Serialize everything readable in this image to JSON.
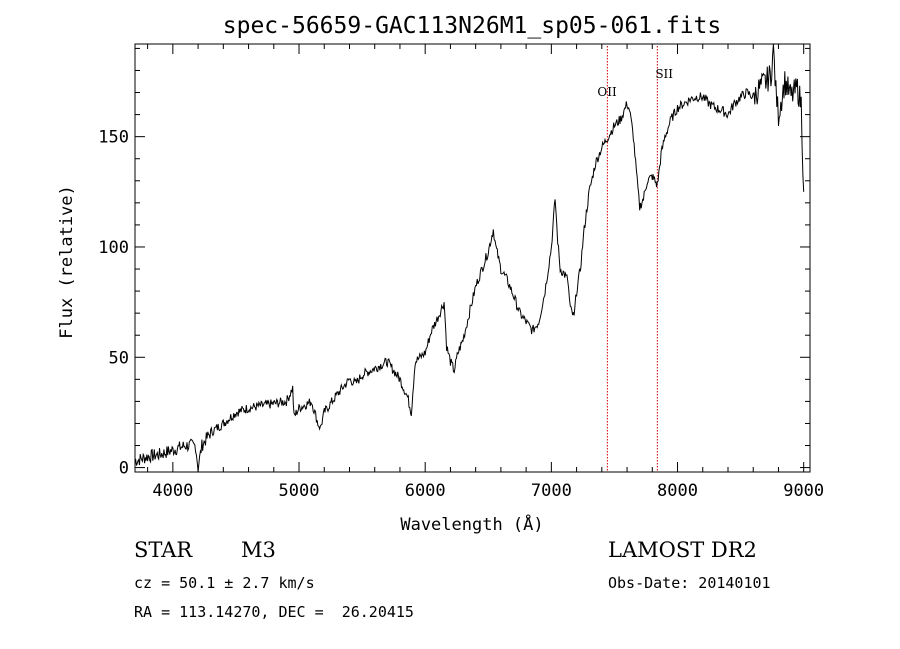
{
  "chart_data": {
    "type": "line",
    "title": "spec-56659-GAC113N26M1_sp05-061.fits",
    "xlabel": "Wavelength (Å)",
    "ylabel": "Flux (relative)",
    "xlim": [
      3700,
      9050
    ],
    "ylim": [
      -2,
      192
    ],
    "xticks": [
      4000,
      5000,
      6000,
      7000,
      8000,
      9000
    ],
    "yticks": [
      0,
      50,
      100,
      150
    ],
    "grid": false,
    "series": [
      {
        "x": [
          3700,
          3800,
          3900,
          4000,
          4100,
          4180,
          4200,
          4230,
          4300,
          4400,
          4500,
          4600,
          4700,
          4800,
          4900,
          4950,
          4960,
          5000,
          5100,
          5150,
          5170,
          5200,
          5300,
          5400,
          5450,
          5500,
          5600,
          5700,
          5800,
          5860,
          5890,
          5920,
          6000,
          6050,
          6100,
          6150,
          6170,
          6200,
          6230,
          6260,
          6300,
          6350,
          6400,
          6450,
          6500,
          6540,
          6560,
          6600,
          6650,
          6700,
          6750,
          6800,
          6850,
          6900,
          6950,
          7000,
          7030,
          7050,
          7070,
          7100,
          7130,
          7150,
          7180,
          7200,
          7230,
          7260,
          7300,
          7350,
          7400,
          7450,
          7500,
          7550,
          7600,
          7620,
          7650,
          7680,
          7700,
          7730,
          7760,
          7800,
          7840,
          7870,
          7900,
          7950,
          8000,
          8050,
          8100,
          8150,
          8200,
          8250,
          8300,
          8350,
          8400,
          8450,
          8500,
          8550,
          8600,
          8650,
          8700,
          8740,
          8760,
          8780,
          8800,
          8850,
          8900,
          8950,
          8980,
          9000
        ],
        "y": [
          3,
          5,
          6,
          8,
          10,
          10,
          0,
          10,
          16,
          20,
          25,
          27,
          28,
          29,
          30,
          36,
          23,
          27,
          30,
          20,
          18,
          25,
          33,
          40,
          38,
          42,
          45,
          48,
          40,
          32,
          25,
          48,
          52,
          62,
          68,
          75,
          55,
          48,
          44,
          52,
          58,
          70,
          82,
          90,
          98,
          108,
          100,
          90,
          85,
          78,
          70,
          66,
          62,
          66,
          80,
          100,
          122,
          103,
          90,
          88,
          85,
          72,
          68,
          80,
          90,
          108,
          125,
          138,
          145,
          150,
          155,
          158,
          165,
          162,
          150,
          130,
          118,
          122,
          130,
          132,
          128,
          142,
          150,
          158,
          163,
          165,
          167,
          168,
          168,
          165,
          163,
          162,
          160,
          165,
          168,
          170,
          168,
          172,
          175,
          178,
          190,
          170,
          160,
          175,
          168,
          172,
          165,
          125
        ]
      }
    ],
    "vlines": [
      {
        "x": 7444,
        "label": "OII",
        "color": "#d00000"
      },
      {
        "x": 7840,
        "label": "SII",
        "color": "#d00000"
      }
    ]
  },
  "info": {
    "class": "STAR",
    "subclass": "M3",
    "survey": "LAMOST DR2",
    "cz": "cz = 50.1 ± 2.7 km/s",
    "obs_date": "Obs-Date: 20140101",
    "radec": "RA = 113.14270, DEC =  26.20415"
  }
}
